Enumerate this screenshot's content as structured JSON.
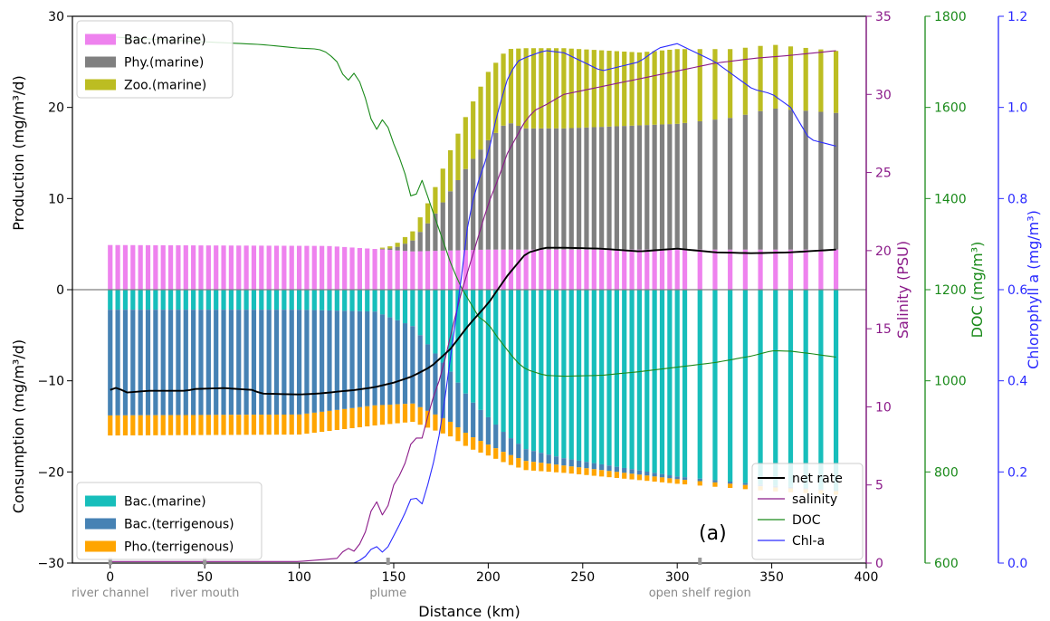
{
  "chart_data": {
    "type": "bar",
    "panel_label": "(a)",
    "xlabel": "Distance (km)",
    "xlim": [
      -20,
      400
    ],
    "xticks": [
      0,
      50,
      100,
      150,
      200,
      250,
      300,
      350,
      400
    ],
    "region_labels": [
      {
        "text": "river channel",
        "x": 0
      },
      {
        "text": "river mouth",
        "x": 50
      },
      {
        "text": "plume",
        "x": 147
      },
      {
        "text": "open shelf region",
        "x": 312
      }
    ],
    "axes": {
      "left": {
        "label_top": "Production (mg/m³/d)",
        "label_bottom": "Consumption (mg/m³/d)",
        "ylim": [
          -30,
          30
        ],
        "ticks": [
          -30,
          -20,
          -10,
          0,
          10,
          20,
          30
        ],
        "tick_labels": [
          "−30",
          "−20",
          "−10",
          "0",
          "10",
          "20",
          "30"
        ],
        "color": "#000000"
      },
      "salinity": {
        "label": "Salinity (PSU)",
        "ylim": [
          0,
          35
        ],
        "ticks": [
          0,
          5,
          10,
          15,
          20,
          25,
          30,
          35
        ],
        "color": "#8b1a89"
      },
      "doc": {
        "label": "DOC (mg/m³)",
        "ylim": [
          600,
          1800
        ],
        "ticks": [
          600,
          800,
          1000,
          1200,
          1400,
          1600,
          1800
        ],
        "color": "#1a8a1a"
      },
      "chla": {
        "label": "Chlorophyll a (mg/m³)",
        "ylim": [
          0,
          1.2
        ],
        "ticks": [
          0.0,
          0.2,
          0.4,
          0.6,
          0.8,
          1.0,
          1.2
        ],
        "tick_labels": [
          "0.0",
          "0.2",
          "0.4",
          "0.6",
          "0.8",
          "1.0",
          "1.2"
        ],
        "color": "#2a2aff"
      }
    },
    "x": [
      0,
      3,
      6,
      9,
      12,
      15,
      18,
      21,
      24,
      27,
      30,
      33,
      36,
      39,
      42,
      45,
      48,
      51,
      54,
      57,
      60,
      63,
      66,
      69,
      72,
      75,
      78,
      81,
      84,
      87,
      90,
      93,
      96,
      99,
      102,
      105,
      108,
      111,
      114,
      117,
      120,
      123,
      126,
      129,
      132,
      135,
      138,
      141,
      144,
      147,
      150,
      153,
      156,
      159,
      162,
      165,
      168,
      171,
      174,
      177,
      180,
      183,
      186,
      189,
      192,
      195,
      198,
      201,
      204,
      207,
      210,
      213,
      216,
      219,
      222,
      225,
      228,
      231,
      234,
      237,
      240,
      243,
      246,
      249,
      252,
      255,
      258,
      261,
      264,
      267,
      270,
      273,
      276,
      279,
      282,
      285,
      288,
      291,
      294,
      297,
      300,
      303,
      306,
      309,
      312,
      315,
      318,
      321,
      324,
      327,
      330,
      333,
      336,
      339,
      342,
      345,
      348,
      351,
      354,
      357,
      360,
      363,
      366,
      369,
      372,
      375,
      378,
      381,
      384
    ],
    "bar_x": [
      0,
      4,
      8,
      12,
      16,
      20,
      24,
      28,
      32,
      36,
      40,
      44,
      48,
      52,
      56,
      60,
      64,
      68,
      72,
      76,
      80,
      84,
      88,
      92,
      96,
      100,
      104,
      108,
      112,
      116,
      120,
      124,
      128,
      132,
      136,
      140,
      144,
      148,
      152,
      156,
      160,
      164,
      168,
      172,
      176,
      180,
      184,
      188,
      192,
      196,
      200,
      204,
      208,
      212,
      216,
      220,
      224,
      228,
      232,
      236,
      240,
      244,
      248,
      252,
      256,
      260,
      264,
      268,
      272,
      276,
      280,
      284,
      288,
      292,
      296,
      300,
      304,
      312,
      320,
      328,
      336,
      344,
      352,
      360,
      368,
      376,
      384
    ],
    "series": [
      {
        "name": "Bac.(marine)",
        "group": "production",
        "color": "#ee82ee"
      },
      {
        "name": "Phy.(marine)",
        "group": "production",
        "color": "#808080"
      },
      {
        "name": "Zoo.(marine)",
        "group": "production",
        "color": "#bcbd22"
      },
      {
        "name": "Bac.(marine)",
        "group": "consumption",
        "color": "#17bebb"
      },
      {
        "name": "Bac.(terrigenous)",
        "group": "consumption",
        "color": "#4682b4"
      },
      {
        "name": "Pho.(terrigenous)",
        "group": "consumption",
        "color": "#ffa500"
      },
      {
        "name": "net rate",
        "group": "line",
        "color": "#000000"
      },
      {
        "name": "salinity",
        "group": "line",
        "color": "#8b1a89"
      },
      {
        "name": "DOC",
        "group": "line",
        "color": "#1a8a1a"
      },
      {
        "name": "Chl-a",
        "group": "line",
        "color": "#2a2aff"
      }
    ],
    "legend_placement": {
      "production": "top-left",
      "consumption": "bottom-left",
      "lines": "bottom-right"
    },
    "keypoints": {
      "bac_marine_prod": [
        [
          0,
          4.9
        ],
        [
          115,
          4.8
        ],
        [
          160,
          4.2
        ],
        [
          200,
          4.4
        ],
        [
          384,
          4.4
        ]
      ],
      "phy_marine": [
        [
          0,
          0
        ],
        [
          140,
          0
        ],
        [
          150,
          0.2
        ],
        [
          160,
          1.2
        ],
        [
          170,
          3.5
        ],
        [
          180,
          6.5
        ],
        [
          190,
          9.5
        ],
        [
          200,
          12
        ],
        [
          210,
          14
        ],
        [
          220,
          13.3
        ],
        [
          240,
          13.3
        ],
        [
          300,
          13.8
        ],
        [
          330,
          14.5
        ],
        [
          350,
          15.5
        ],
        [
          384,
          15
        ]
      ],
      "zoo_marine": [
        [
          0,
          0
        ],
        [
          140,
          0
        ],
        [
          150,
          0.3
        ],
        [
          160,
          1
        ],
        [
          170,
          2.5
        ],
        [
          180,
          4.5
        ],
        [
          190,
          6
        ],
        [
          200,
          7.5
        ],
        [
          210,
          8
        ],
        [
          220,
          8.8
        ],
        [
          240,
          8.8
        ],
        [
          280,
          8
        ],
        [
          300,
          8.2
        ],
        [
          330,
          7.5
        ],
        [
          350,
          7
        ],
        [
          384,
          6.8
        ]
      ],
      "bac_marine_cons": [
        [
          0,
          2.2
        ],
        [
          100,
          2.2
        ],
        [
          140,
          2.4
        ],
        [
          160,
          4
        ],
        [
          170,
          6.5
        ],
        [
          180,
          9
        ],
        [
          190,
          12
        ],
        [
          200,
          14
        ],
        [
          210,
          16
        ],
        [
          220,
          17.5
        ],
        [
          240,
          18.5
        ],
        [
          300,
          20.5
        ],
        [
          350,
          21.5
        ],
        [
          384,
          22
        ]
      ],
      "bac_terr": [
        [
          0,
          11.6
        ],
        [
          100,
          11.5
        ],
        [
          140,
          10.3
        ],
        [
          160,
          8.5
        ],
        [
          170,
          7
        ],
        [
          180,
          5.5
        ],
        [
          190,
          4
        ],
        [
          200,
          3
        ],
        [
          210,
          2
        ],
        [
          220,
          1.3
        ],
        [
          240,
          0.8
        ],
        [
          300,
          0.3
        ],
        [
          384,
          0.1
        ]
      ],
      "pho_terr": [
        [
          0,
          2.2
        ],
        [
          140,
          2.2
        ],
        [
          160,
          2
        ],
        [
          180,
          1.6
        ],
        [
          200,
          1.2
        ],
        [
          220,
          1
        ],
        [
          240,
          0.8
        ],
        [
          300,
          0.5
        ],
        [
          384,
          0.4
        ]
      ],
      "net_rate": [
        [
          0,
          -11
        ],
        [
          4,
          -10.7
        ],
        [
          8,
          -11.3
        ],
        [
          20,
          -11.1
        ],
        [
          30,
          -11.1
        ],
        [
          40,
          -11.1
        ],
        [
          45,
          -10.9
        ],
        [
          60,
          -10.8
        ],
        [
          75,
          -11
        ],
        [
          80,
          -11.4
        ],
        [
          100,
          -11.5
        ],
        [
          110,
          -11.4
        ],
        [
          120,
          -11.2
        ],
        [
          130,
          -11
        ],
        [
          140,
          -10.7
        ],
        [
          150,
          -10.2
        ],
        [
          160,
          -9.5
        ],
        [
          170,
          -8.4
        ],
        [
          180,
          -6.5
        ],
        [
          190,
          -3.8
        ],
        [
          200,
          -1.5
        ],
        [
          210,
          1.5
        ],
        [
          220,
          4
        ],
        [
          230,
          4.6
        ],
        [
          240,
          4.6
        ],
        [
          260,
          4.5
        ],
        [
          280,
          4.2
        ],
        [
          300,
          4.5
        ],
        [
          320,
          4.1
        ],
        [
          340,
          4.0
        ],
        [
          360,
          4.1
        ],
        [
          384,
          4.4
        ]
      ],
      "salinity": [
        [
          0,
          0.1
        ],
        [
          100,
          0.1
        ],
        [
          120,
          0.3
        ],
        [
          125,
          1
        ],
        [
          130,
          0.7
        ],
        [
          135,
          2
        ],
        [
          140,
          4.2
        ],
        [
          145,
          2.8
        ],
        [
          150,
          5
        ],
        [
          155,
          6
        ],
        [
          160,
          8
        ],
        [
          165,
          8
        ],
        [
          170,
          10.3
        ],
        [
          175,
          12
        ],
        [
          180,
          14.5
        ],
        [
          185,
          17
        ],
        [
          190,
          19
        ],
        [
          195,
          21
        ],
        [
          200,
          23
        ],
        [
          205,
          24.5
        ],
        [
          210,
          26.2
        ],
        [
          215,
          27.3
        ],
        [
          220,
          28.4
        ],
        [
          225,
          29
        ],
        [
          230,
          29.3
        ],
        [
          240,
          30
        ],
        [
          260,
          30.5
        ],
        [
          280,
          31
        ],
        [
          300,
          31.5
        ],
        [
          320,
          32
        ],
        [
          340,
          32.3
        ],
        [
          360,
          32.5
        ],
        [
          384,
          32.8
        ]
      ],
      "doc": [
        [
          0,
          1755
        ],
        [
          30,
          1748
        ],
        [
          60,
          1742
        ],
        [
          80,
          1738
        ],
        [
          100,
          1730
        ],
        [
          110,
          1728
        ],
        [
          115,
          1720
        ],
        [
          120,
          1700
        ],
        [
          125,
          1655
        ],
        [
          130,
          1680
        ],
        [
          135,
          1620
        ],
        [
          140,
          1545
        ],
        [
          145,
          1580
        ],
        [
          150,
          1520
        ],
        [
          155,
          1470
        ],
        [
          160,
          1390
        ],
        [
          165,
          1440
        ],
        [
          170,
          1380
        ],
        [
          175,
          1320
        ],
        [
          180,
          1260
        ],
        [
          185,
          1210
        ],
        [
          190,
          1175
        ],
        [
          195,
          1140
        ],
        [
          200,
          1125
        ],
        [
          205,
          1095
        ],
        [
          210,
          1068
        ],
        [
          215,
          1042
        ],
        [
          220,
          1025
        ],
        [
          230,
          1012
        ],
        [
          240,
          1010
        ],
        [
          260,
          1012
        ],
        [
          280,
          1020
        ],
        [
          300,
          1030
        ],
        [
          320,
          1040
        ],
        [
          340,
          1055
        ],
        [
          350,
          1066
        ],
        [
          360,
          1065
        ],
        [
          370,
          1060
        ],
        [
          384,
          1052
        ]
      ],
      "chla": [
        [
          0,
          0
        ],
        [
          120,
          0
        ],
        [
          130,
          0
        ],
        [
          135,
          0.015
        ],
        [
          140,
          0.04
        ],
        [
          145,
          0.02
        ],
        [
          150,
          0.06
        ],
        [
          155,
          0.1
        ],
        [
          160,
          0.15
        ],
        [
          165,
          0.13
        ],
        [
          170,
          0.2
        ],
        [
          175,
          0.3
        ],
        [
          180,
          0.45
        ],
        [
          185,
          0.6
        ],
        [
          190,
          0.77
        ],
        [
          195,
          0.84
        ],
        [
          200,
          0.9
        ],
        [
          205,
          0.99
        ],
        [
          210,
          1.06
        ],
        [
          215,
          1.1
        ],
        [
          220,
          1.11
        ],
        [
          230,
          1.125
        ],
        [
          240,
          1.12
        ],
        [
          250,
          1.1
        ],
        [
          260,
          1.08
        ],
        [
          280,
          1.1
        ],
        [
          290,
          1.13
        ],
        [
          300,
          1.14
        ],
        [
          310,
          1.12
        ],
        [
          320,
          1.1
        ],
        [
          330,
          1.07
        ],
        [
          340,
          1.04
        ],
        [
          350,
          1.03
        ],
        [
          360,
          1.0
        ],
        [
          370,
          0.93
        ],
        [
          384,
          0.915
        ]
      ]
    }
  }
}
